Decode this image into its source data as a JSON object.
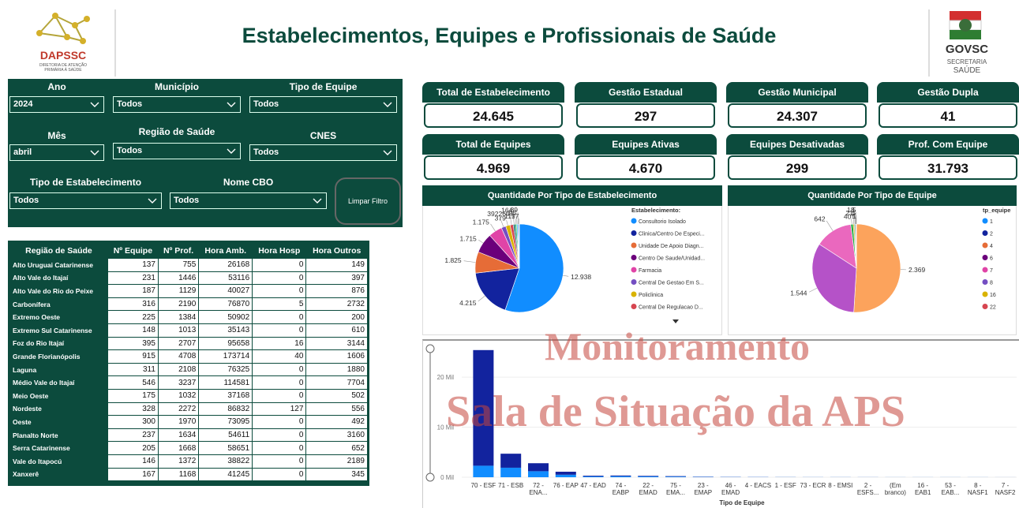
{
  "header": {
    "title": "Estabelecimentos, Equipes e Profissionais de Saúde",
    "logo_left": {
      "name": "DAPSSC",
      "lines": [
        "DIRETORIA DE ATENÇÃO",
        "PRIMÁRIA À SAÚDE"
      ]
    },
    "logo_right": {
      "name": "GOVSC",
      "lines": [
        "SECRETARIA",
        "SAÚDE"
      ]
    }
  },
  "filters": [
    {
      "label": "Ano",
      "value": "2024"
    },
    {
      "label": "Município",
      "value": "Todos"
    },
    {
      "label": "Tipo de Equipe",
      "value": "Todos"
    },
    {
      "label": "Mês",
      "value": "abril"
    },
    {
      "label": "Região de Saúde",
      "value": "Todos"
    },
    {
      "label": "CNES",
      "value": "Todos"
    },
    {
      "label": "Tipo de Estabelecimento",
      "value": "Todos"
    },
    {
      "label": "Nome CBO",
      "value": "Todos"
    }
  ],
  "clear_button": "Limpar Filtro",
  "kpis": [
    {
      "label": "Total de Estabelecimento",
      "value": "24.645"
    },
    {
      "label": "Gestão Estadual",
      "value": "297"
    },
    {
      "label": "Gestão Municipal",
      "value": "24.307"
    },
    {
      "label": "Gestão Dupla",
      "value": "41"
    },
    {
      "label": "Total de Equipes",
      "value": "4.969"
    },
    {
      "label": "Equipes Ativas",
      "value": "4.670"
    },
    {
      "label": "Equipes Desativadas",
      "value": "299"
    },
    {
      "label": "Prof. Com Equipe",
      "value": "31.793"
    }
  ],
  "table": {
    "columns": [
      "Região de Saúde",
      "Nº Equipe",
      "Nº Prof.",
      "Hora Amb.",
      "Hora Hosp",
      "Hora Outros"
    ],
    "rows": [
      [
        "Alto Uruguai Catarinense",
        137,
        755,
        26168,
        0,
        149
      ],
      [
        "Alto Vale do Itajaí",
        231,
        1446,
        53116,
        0,
        397
      ],
      [
        "Alto Vale do Rio do Peixe",
        187,
        1129,
        40027,
        0,
        876
      ],
      [
        "Carbonífera",
        316,
        2190,
        76870,
        5,
        2732
      ],
      [
        "Extremo Oeste",
        225,
        1384,
        50902,
        0,
        200
      ],
      [
        "Extremo Sul Catarinense",
        148,
        1013,
        35143,
        0,
        610
      ],
      [
        "Foz do Rio Itajaí",
        395,
        2707,
        95658,
        16,
        3144
      ],
      [
        "Grande Florianópolis",
        915,
        4708,
        173714,
        40,
        1606
      ],
      [
        "Laguna",
        311,
        2108,
        76325,
        0,
        1880
      ],
      [
        "Médio Vale do Itajaí",
        546,
        3237,
        114581,
        0,
        7704
      ],
      [
        "Meio Oeste",
        175,
        1032,
        37168,
        0,
        502
      ],
      [
        "Nordeste",
        328,
        2272,
        86832,
        127,
        556
      ],
      [
        "Oeste",
        300,
        1970,
        73095,
        0,
        492
      ],
      [
        "Planalto Norte",
        237,
        1634,
        54611,
        0,
        3160
      ],
      [
        "Serra Catarinense",
        205,
        1668,
        58651,
        0,
        652
      ],
      [
        "Vale do Itapocú",
        146,
        1372,
        38822,
        0,
        2189
      ],
      [
        "Xanxerê",
        167,
        1168,
        41245,
        0,
        345
      ]
    ]
  },
  "charts": [
    {
      "type": "pie",
      "title": "Quantidade Por Tipo de Estabelecimento",
      "legend_title": "Estabelecimento:",
      "legend": [
        {
          "name": "Consultorio Isolado",
          "color": "#118dff"
        },
        {
          "name": "Clinica/Centro De Especi...",
          "color": "#12239e"
        },
        {
          "name": "Unidade De Apoio Diagn...",
          "color": "#e66c37"
        },
        {
          "name": "Centro De Saude/Unidad...",
          "color": "#6b007b"
        },
        {
          "name": "Farmacia",
          "color": "#e044a7"
        },
        {
          "name": "Central De Gestao Em S...",
          "color": "#744ec2"
        },
        {
          "name": "Policlinica",
          "color": "#d9b300"
        },
        {
          "name": "Central De Regulacao D...",
          "color": "#d64550"
        }
      ],
      "values": [
        12938,
        4215,
        1825,
        1715,
        1175,
        392,
        379,
        269,
        164,
        117,
        95,
        89,
        57
      ],
      "value_labels": [
        "12.938",
        "4.215",
        "1.825",
        "1.715",
        "1.175",
        "392",
        "379",
        "269",
        "164",
        "117",
        "95",
        "89",
        "57"
      ],
      "colors": [
        "#118dff",
        "#12239e",
        "#e66c37",
        "#6b007b",
        "#e044a7",
        "#744ec2",
        "#d9b300",
        "#d64550",
        "#197278",
        "#1aab40",
        "#15c6f4",
        "#4766ff",
        "#dbbe00"
      ]
    },
    {
      "type": "pie",
      "title": "Quantidade Por Tipo de Equipe",
      "legend_title": "tp_equipe",
      "legend": [
        {
          "name": "1",
          "color": "#118dff"
        },
        {
          "name": "2",
          "color": "#12239e"
        },
        {
          "name": "4",
          "color": "#e66c37"
        },
        {
          "name": "6",
          "color": "#6b007b"
        },
        {
          "name": "7",
          "color": "#e044a7"
        },
        {
          "name": "8",
          "color": "#744ec2"
        },
        {
          "name": "16",
          "color": "#d9b300"
        },
        {
          "name": "22",
          "color": "#d64550"
        }
      ],
      "values": [
        2369,
        1544,
        642,
        40,
        21,
        18,
        5,
        5,
        5,
        1
      ],
      "value_labels": [
        "2.369",
        "1.544",
        "642",
        "40",
        "21",
        "18",
        "5",
        "5",
        "5",
        "1"
      ],
      "colors": [
        "#fca35c",
        "#b552c8",
        "#ea68be",
        "#1aab40",
        "#d9b300",
        "#197278",
        "#118dff",
        "#12239e",
        "#d64550",
        "#6b007b"
      ]
    },
    {
      "type": "bar",
      "x_label": "Tipo de Equipe",
      "categories": [
        "70 - ESF",
        "71 - ESB",
        "72 - ENA...",
        "76 - EAP",
        "47 - EAD",
        "74 - EABP",
        "22 - EMAD",
        "75 - EMA...",
        "23 - EMAP",
        "46 - EMAD",
        "4 - EACS",
        "1 - ESF",
        "73 - ECR",
        "8 - EMSI",
        "2 - ESFS...",
        "(Em branco)",
        "16 - EAB1",
        "53 - EAB...",
        "8 - NASF1",
        "7 - NASF2"
      ],
      "series": [
        {
          "color": "#118dff",
          "values": [
            2300,
            1900,
            1200,
            500,
            150,
            200,
            150,
            120,
            60,
            40,
            30,
            20,
            15,
            15,
            10,
            10,
            10,
            10,
            10,
            5
          ]
        },
        {
          "color": "#12239e",
          "values": [
            23100,
            2800,
            1600,
            600,
            150,
            150,
            120,
            100,
            50,
            30,
            20,
            15,
            10,
            10,
            10,
            5,
            5,
            5,
            5,
            5
          ]
        }
      ],
      "ylim": [
        0,
        26000
      ],
      "yticks": [
        {
          "value": 0,
          "label": "0 Mil"
        },
        {
          "value": 10000,
          "label": "10 Mil"
        },
        {
          "value": 20000,
          "label": "20 Mil"
        }
      ]
    }
  ],
  "watermark": [
    "Monitoramento",
    "Sala de Situação da APS"
  ]
}
